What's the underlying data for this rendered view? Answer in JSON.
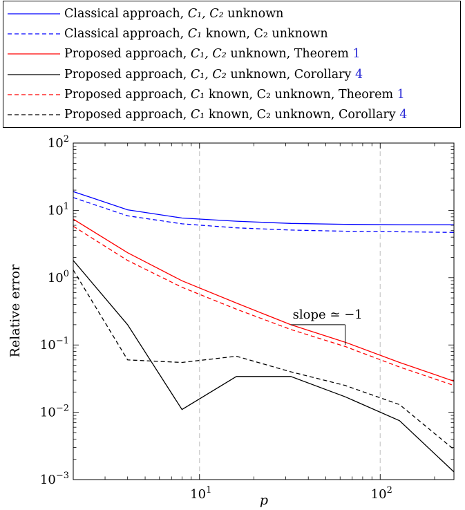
{
  "legend": {
    "entries": [
      {
        "series": 0,
        "prefix": "Classical approach, ",
        "math": "C₁, C₂",
        "rest": " unknown",
        "ref": ""
      },
      {
        "series": 1,
        "prefix": "Classical approach, ",
        "math": "C₁",
        "rest": " known, C₂ unknown",
        "ref": ""
      },
      {
        "series": 2,
        "prefix": "Proposed approach, ",
        "math": "C₁, C₂",
        "rest": " unknown, Theorem ",
        "ref": "1"
      },
      {
        "series": 3,
        "prefix": "Proposed approach, ",
        "math": "C₁, C₂",
        "rest": " unknown, Corollary ",
        "ref": "4"
      },
      {
        "series": 4,
        "prefix": "Proposed approach, ",
        "math": "C₁",
        "rest": " known, C₂ unknown, Theorem ",
        "ref": "1"
      },
      {
        "series": 5,
        "prefix": "Proposed approach, ",
        "math": "C₁",
        "rest": " known, C₂ unknown, Corollary ",
        "ref": "4"
      }
    ]
  },
  "chart_data": {
    "type": "line",
    "xlabel": "p",
    "ylabel": "Relative error",
    "xscale": "log",
    "yscale": "log",
    "xlim": [
      2,
      256
    ],
    "ylim": [
      0.001,
      100
    ],
    "x_tick_labels": [
      "10^1",
      "10^2"
    ],
    "y_tick_labels": [
      "10^-3",
      "10^-2",
      "10^-1",
      "10^0",
      "10^1",
      "10^2"
    ],
    "grid": "vertical dashed at x = 10 and x = 100",
    "annotation": {
      "text": "slope ≃ −1",
      "x_from": 32,
      "x_to": 64,
      "y_from": 0.1,
      "y_to": 0.2
    },
    "series": [
      {
        "color": "#0000ff",
        "dash": "solid",
        "x": [
          2,
          4,
          8,
          16,
          32,
          64,
          128,
          256
        ],
        "y": [
          19,
          10.2,
          7.7,
          6.9,
          6.4,
          6.2,
          6.1,
          6.1
        ]
      },
      {
        "color": "#0000ff",
        "dash": "dashed",
        "x": [
          2,
          4,
          8,
          16,
          32,
          64,
          128,
          256
        ],
        "y": [
          15.5,
          8.3,
          6.3,
          5.5,
          5.1,
          4.9,
          4.8,
          4.7
        ]
      },
      {
        "color": "#ff0000",
        "dash": "solid",
        "x": [
          2,
          4,
          8,
          16,
          32,
          64,
          128,
          256
        ],
        "y": [
          7.4,
          2.35,
          0.9,
          0.42,
          0.2,
          0.11,
          0.055,
          0.029
        ]
      },
      {
        "color": "#000000",
        "dash": "solid",
        "x": [
          2,
          4,
          8,
          16,
          32,
          64,
          128,
          256
        ],
        "y": [
          1.8,
          0.2,
          0.011,
          0.034,
          0.034,
          0.017,
          0.0075,
          0.0013
        ]
      },
      {
        "color": "#ff0000",
        "dash": "dashed",
        "x": [
          2,
          4,
          8,
          16,
          32,
          64,
          128,
          256
        ],
        "y": [
          5.8,
          1.8,
          0.72,
          0.34,
          0.17,
          0.095,
          0.047,
          0.025
        ]
      },
      {
        "color": "#000000",
        "dash": "dashed",
        "x": [
          2,
          4,
          8,
          16,
          32,
          64,
          128,
          256
        ],
        "y": [
          1.3,
          0.06,
          0.055,
          0.068,
          0.04,
          0.025,
          0.013,
          0.0028
        ]
      }
    ]
  }
}
